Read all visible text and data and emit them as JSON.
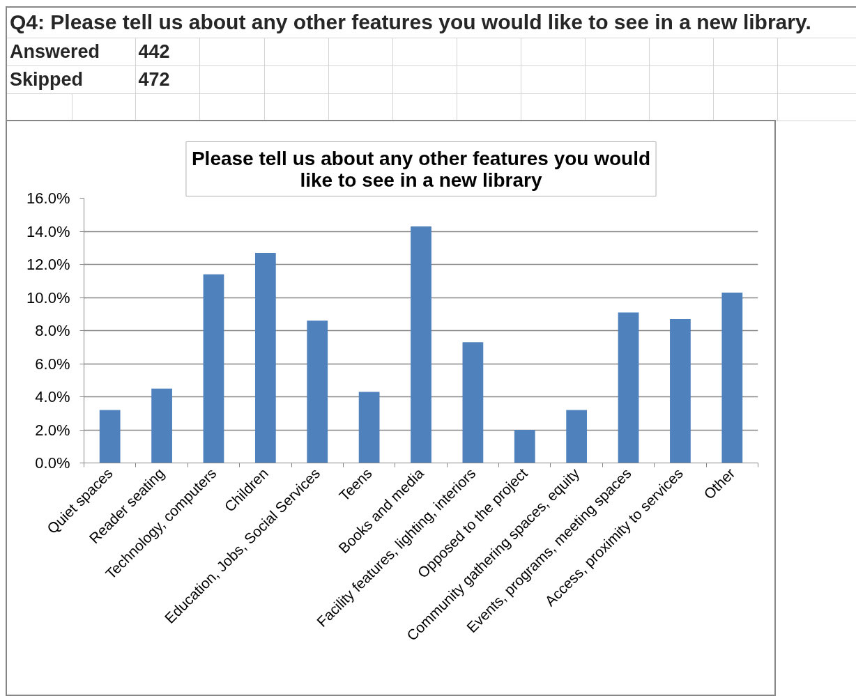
{
  "chart_data": {
    "type": "bar",
    "title": "Q4: Please tell us about any other features you would like to see in a new library.",
    "subtitle": "Please tell us about any other features you would like to see in a new library",
    "annotations": [
      "Answered",
      "442",
      "Skipped",
      "472"
    ],
    "categories": [
      "Quiet spaces",
      "Reader seating",
      "Technology, computers",
      "Children",
      "Education, Jobs, Social Services",
      "Teens",
      "Books and media",
      "Facility features, lighting, interiors",
      "Opposed to the project",
      "Community gathering spaces, equity",
      "Events, programs, meeting spaces",
      "Access, proximity to services",
      "Other"
    ],
    "values": [
      3.2,
      4.5,
      11.4,
      12.7,
      8.6,
      4.3,
      14.3,
      7.3,
      2.0,
      3.2,
      9.1,
      8.7,
      10.3
    ],
    "color": "#4f81bd",
    "ylim": [
      0,
      16
    ],
    "yticks": [
      {
        "value": 0,
        "label": "0.0%"
      },
      {
        "value": 2,
        "label": "2.0%"
      },
      {
        "value": 4,
        "label": "4.0%"
      },
      {
        "value": 6,
        "label": "6.0%"
      },
      {
        "value": 8,
        "label": "8.0%"
      },
      {
        "value": 10,
        "label": "10.0%"
      },
      {
        "value": 12,
        "label": "12.0%"
      },
      {
        "value": 14,
        "label": "14.0%"
      },
      {
        "value": 16,
        "label": "16.0%"
      }
    ],
    "grid": "y"
  }
}
